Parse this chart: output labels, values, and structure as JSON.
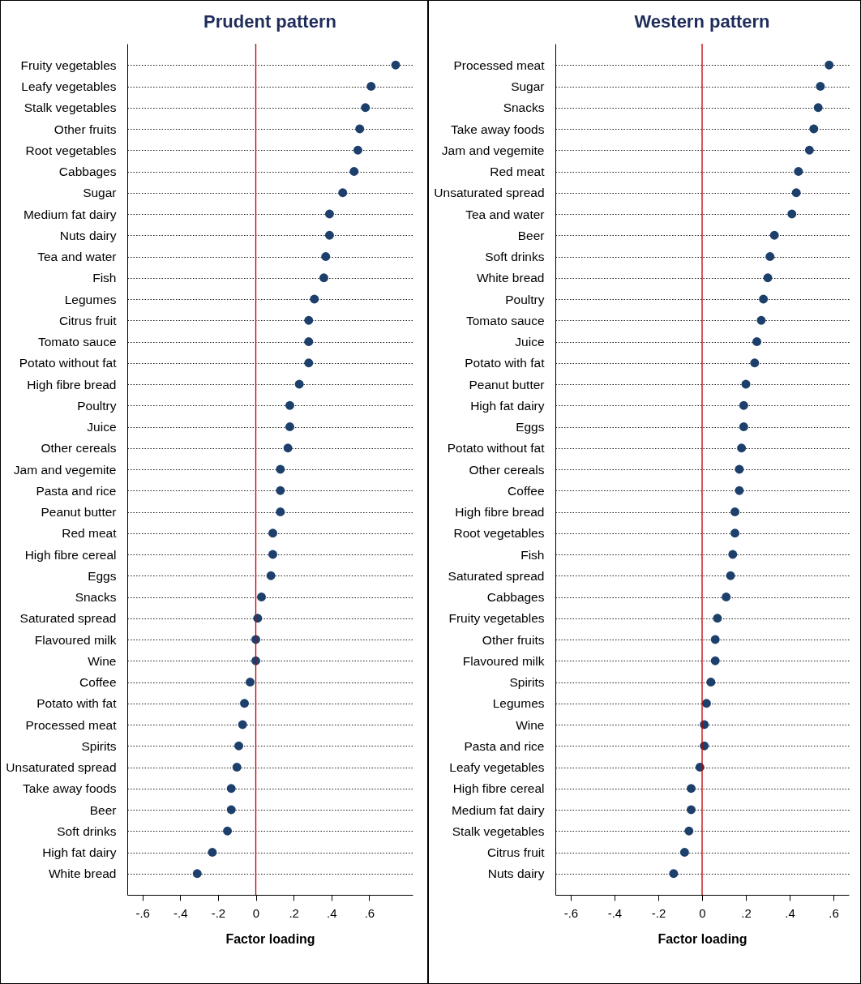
{
  "chart_data": [
    {
      "type": "scatter",
      "orientation": "horizontal",
      "title": "Prudent pattern",
      "xlabel": "Factor loading",
      "color": "#1c3f6b",
      "marker": "circle",
      "grid": "y",
      "categories": [
        "Fruity vegetables",
        "Leafy vegetables",
        "Stalk vegetables",
        "Other fruits",
        "Root vegetables",
        "Cabbages",
        "Sugar",
        "Medium fat dairy",
        "Nuts dairy",
        "Tea and water",
        "Fish",
        "Legumes",
        "Citrus fruit",
        "Tomato sauce",
        "Potato without fat",
        "High fibre bread",
        "Poultry",
        "Juice",
        "Other cereals",
        "Jam and vegemite",
        "Pasta and rice",
        "Peanut butter",
        "Red meat",
        "High fibre cereal",
        "Eggs",
        "Snacks",
        "Saturated spread",
        "Flavoured milk",
        "Wine",
        "Coffee",
        "Potato with fat",
        "Processed meat",
        "Spirits",
        "Unsaturated spread",
        "Take away foods",
        "Beer",
        "Soft drinks",
        "High fat dairy",
        "White bread"
      ],
      "values": [
        0.74,
        0.61,
        0.58,
        0.55,
        0.54,
        0.52,
        0.46,
        0.39,
        0.39,
        0.37,
        0.36,
        0.31,
        0.28,
        0.28,
        0.28,
        0.23,
        0.18,
        0.18,
        0.17,
        0.13,
        0.13,
        0.13,
        0.09,
        0.09,
        0.08,
        0.03,
        0.01,
        0.0,
        0.0,
        -0.03,
        -0.06,
        -0.07,
        -0.09,
        -0.1,
        -0.13,
        -0.13,
        -0.15,
        -0.23,
        -0.31
      ],
      "xlim": [
        -0.68,
        0.83
      ],
      "xticks": [
        {
          "value": -0.6,
          "label": "-.6"
        },
        {
          "value": -0.4,
          "label": "-.4"
        },
        {
          "value": -0.2,
          "label": "-.2"
        },
        0,
        {
          "value": 0.2,
          "label": ".2"
        },
        {
          "value": 0.4,
          "label": ".4"
        },
        {
          "value": 0.6,
          "label": ".6"
        }
      ],
      "ref_lines": [
        {
          "axis": "x",
          "value": 0,
          "color": "#c00000"
        }
      ]
    },
    {
      "type": "scatter",
      "orientation": "horizontal",
      "title": "Western pattern",
      "xlabel": "Factor loading",
      "color": "#1c3f6b",
      "marker": "circle",
      "grid": "y",
      "categories": [
        "Processed meat",
        "Sugar",
        "Snacks",
        "Take away foods",
        "Jam and vegemite",
        "Red meat",
        "Unsaturated spread",
        "Tea and water",
        "Beer",
        "Soft drinks",
        "White bread",
        "Poultry",
        "Tomato sauce",
        "Juice",
        "Potato with fat",
        "Peanut butter",
        "High fat dairy",
        "Eggs",
        "Potato without fat",
        "Other cereals",
        "Coffee",
        "High fibre bread",
        "Root vegetables",
        "Fish",
        "Saturated spread",
        "Cabbages",
        "Fruity vegetables",
        "Other fruits",
        "Flavoured milk",
        "Spirits",
        "Legumes",
        "Wine",
        "Pasta and rice",
        "Leafy vegetables",
        "High fibre cereal",
        "Medium fat dairy",
        "Stalk vegetables",
        "Citrus fruit",
        "Nuts dairy"
      ],
      "values": [
        0.58,
        0.54,
        0.53,
        0.51,
        0.49,
        0.44,
        0.43,
        0.41,
        0.33,
        0.31,
        0.3,
        0.28,
        0.27,
        0.25,
        0.24,
        0.2,
        0.19,
        0.19,
        0.18,
        0.17,
        0.17,
        0.15,
        0.15,
        0.14,
        0.13,
        0.11,
        0.07,
        0.06,
        0.06,
        0.04,
        0.02,
        0.01,
        0.01,
        -0.01,
        -0.05,
        -0.05,
        -0.06,
        -0.08,
        -0.13
      ],
      "xlim": [
        -0.67,
        0.67
      ],
      "xticks": [
        {
          "value": -0.6,
          "label": "-.6"
        },
        {
          "value": -0.4,
          "label": "-.4"
        },
        {
          "value": -0.2,
          "label": "-.2"
        },
        0,
        {
          "value": 0.2,
          "label": ".2"
        },
        {
          "value": 0.4,
          "label": ".4"
        },
        {
          "value": 0.6,
          "label": ".6"
        }
      ],
      "ref_lines": [
        {
          "axis": "x",
          "value": 0,
          "color": "#c00000"
        }
      ]
    }
  ]
}
